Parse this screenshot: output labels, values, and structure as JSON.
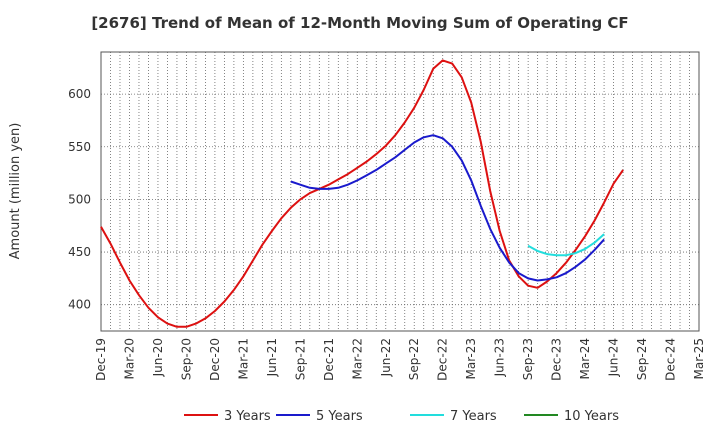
{
  "chart_data": {
    "type": "line",
    "title": "[2676]  Trend of Mean of 12-Month Moving Sum of Operating CF",
    "xlabel": "",
    "ylabel": "Amount (million yen)",
    "ylim": [
      375,
      640
    ],
    "yticks": [
      400,
      450,
      500,
      550,
      600
    ],
    "x_tick_labels": [
      "Dec-19",
      "Mar-20",
      "Jun-20",
      "Sep-20",
      "Dec-20",
      "Mar-21",
      "Jun-21",
      "Sep-21",
      "Dec-21",
      "Mar-22",
      "Jun-22",
      "Sep-22",
      "Dec-22",
      "Mar-23",
      "Jun-23",
      "Sep-23",
      "Dec-23",
      "Mar-24",
      "Jun-24",
      "Sep-24",
      "Dec-24",
      "Mar-25"
    ],
    "x_range_months": [
      0,
      63
    ],
    "grid": true,
    "legend_position": "bottom",
    "series": [
      {
        "name": "3 Years",
        "color": "#dd1111",
        "points": [
          [
            0,
            474
          ],
          [
            1,
            458
          ],
          [
            2,
            440
          ],
          [
            3,
            423
          ],
          [
            4,
            409
          ],
          [
            5,
            397
          ],
          [
            6,
            388
          ],
          [
            7,
            382
          ],
          [
            8,
            379
          ],
          [
            9,
            379
          ],
          [
            10,
            382
          ],
          [
            11,
            387
          ],
          [
            12,
            394
          ],
          [
            13,
            403
          ],
          [
            14,
            414
          ],
          [
            15,
            427
          ],
          [
            16,
            442
          ],
          [
            17,
            457
          ],
          [
            18,
            470
          ],
          [
            19,
            482
          ],
          [
            20,
            492
          ],
          [
            21,
            500
          ],
          [
            22,
            506
          ],
          [
            23,
            510
          ],
          [
            24,
            514
          ],
          [
            25,
            519
          ],
          [
            26,
            524
          ],
          [
            27,
            530
          ],
          [
            28,
            536
          ],
          [
            29,
            543
          ],
          [
            30,
            551
          ],
          [
            31,
            561
          ],
          [
            32,
            573
          ],
          [
            33,
            587
          ],
          [
            34,
            604
          ],
          [
            35,
            624
          ],
          [
            36,
            632
          ],
          [
            37,
            629
          ],
          [
            38,
            616
          ],
          [
            39,
            592
          ],
          [
            40,
            555
          ],
          [
            41,
            508
          ],
          [
            42,
            470
          ],
          [
            43,
            442
          ],
          [
            44,
            427
          ],
          [
            45,
            418
          ],
          [
            46,
            416
          ],
          [
            47,
            422
          ],
          [
            48,
            430
          ],
          [
            49,
            440
          ],
          [
            50,
            452
          ],
          [
            51,
            465
          ],
          [
            52,
            480
          ],
          [
            53,
            497
          ],
          [
            54,
            515
          ],
          [
            55,
            528
          ]
        ]
      },
      {
        "name": "5 Years",
        "color": "#1a1acc",
        "points": [
          [
            20,
            517
          ],
          [
            21,
            514
          ],
          [
            22,
            511
          ],
          [
            23,
            510
          ],
          [
            24,
            510
          ],
          [
            25,
            511
          ],
          [
            26,
            514
          ],
          [
            27,
            518
          ],
          [
            28,
            523
          ],
          [
            29,
            528
          ],
          [
            30,
            534
          ],
          [
            31,
            540
          ],
          [
            32,
            547
          ],
          [
            33,
            554
          ],
          [
            34,
            559
          ],
          [
            35,
            561
          ],
          [
            36,
            558
          ],
          [
            37,
            550
          ],
          [
            38,
            537
          ],
          [
            39,
            518
          ],
          [
            40,
            494
          ],
          [
            41,
            472
          ],
          [
            42,
            454
          ],
          [
            43,
            440
          ],
          [
            44,
            430
          ],
          [
            45,
            425
          ],
          [
            46,
            423
          ],
          [
            47,
            424
          ],
          [
            48,
            426
          ],
          [
            49,
            430
          ],
          [
            50,
            436
          ],
          [
            51,
            443
          ],
          [
            52,
            452
          ],
          [
            53,
            462
          ]
        ]
      },
      {
        "name": "7 Years",
        "color": "#22dddd",
        "points": [
          [
            45,
            456
          ],
          [
            46,
            451
          ],
          [
            47,
            448
          ],
          [
            48,
            447
          ],
          [
            49,
            447
          ],
          [
            50,
            449
          ],
          [
            51,
            453
          ],
          [
            52,
            459
          ],
          [
            53,
            467
          ]
        ]
      },
      {
        "name": "10 Years",
        "color": "#228822",
        "points": []
      }
    ]
  }
}
